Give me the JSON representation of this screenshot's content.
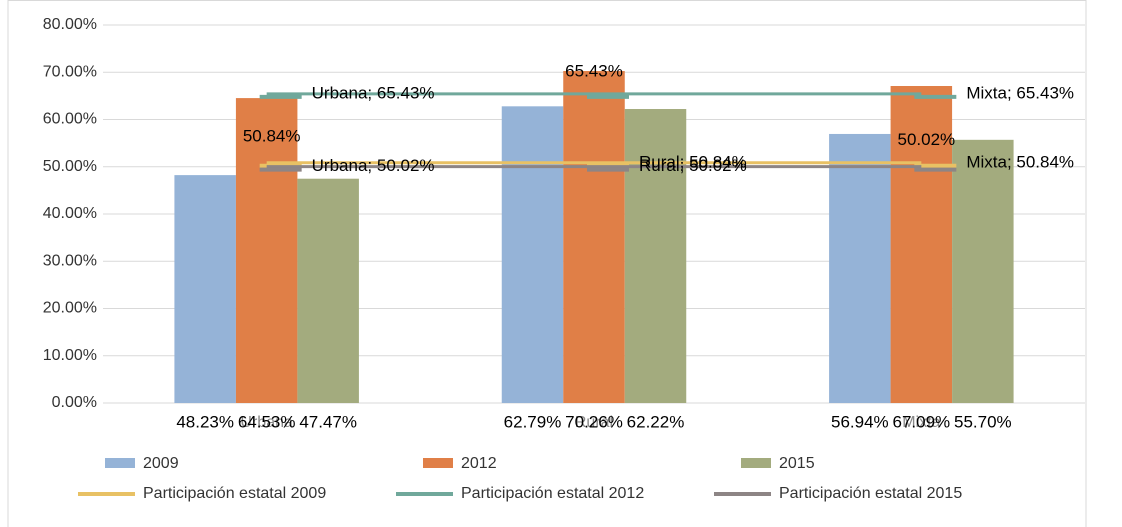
{
  "chart_data": {
    "type": "combo",
    "categories": [
      "Urbana",
      "Rural",
      "Mixta"
    ],
    "series": [
      {
        "name": "2009",
        "kind": "bar",
        "color": "#95b3d7",
        "values": [
          48.23,
          62.79,
          56.94
        ],
        "value_labels": [
          "48.23%",
          "62.79%",
          "56.94%"
        ]
      },
      {
        "name": "2012",
        "kind": "bar",
        "color": "#e07f47",
        "values": [
          64.53,
          70.26,
          67.09
        ],
        "value_labels": [
          "64.53%",
          "70.26%",
          "67.09%"
        ]
      },
      {
        "name": "2015",
        "kind": "bar",
        "color": "#a3ab7e",
        "values": [
          47.47,
          62.22,
          55.7
        ],
        "value_labels": [
          "47.47%",
          "62.22%",
          "55.70%"
        ]
      },
      {
        "name": "Participación estatal 2009",
        "kind": "line",
        "color": "#e8c164",
        "values": [
          50.84,
          50.84,
          50.84
        ],
        "value_labels": [
          "50.84%",
          "Rural; 50.84%",
          "Mixta; 50.84%"
        ]
      },
      {
        "name": "Participación estatal 2012",
        "kind": "line",
        "color": "#70a89b",
        "values": [
          65.43,
          65.43,
          65.43
        ],
        "value_labels": [
          "Urbana; 65.43%",
          "65.43%",
          "Mixta; 65.43%"
        ]
      },
      {
        "name": "Participación estatal 2015",
        "kind": "line",
        "color": "#8d8585",
        "values": [
          50.02,
          50.02,
          50.02
        ],
        "value_labels": [
          "Urbana; 50.02%",
          "Rural; 50.02%",
          "50.02%"
        ]
      }
    ],
    "ylim": [
      0,
      80
    ],
    "yticks": [
      {
        "value": 0,
        "label": "0.00%"
      },
      {
        "value": 10,
        "label": "10.00%"
      },
      {
        "value": 20,
        "label": "20.00%"
      },
      {
        "value": 30,
        "label": "30.00%"
      },
      {
        "value": 40,
        "label": "40.00%"
      },
      {
        "value": 50,
        "label": "50.00%"
      },
      {
        "value": 60,
        "label": "60.00%"
      },
      {
        "value": 70,
        "label": "70.00%"
      },
      {
        "value": 80,
        "label": "80.00%"
      }
    ],
    "grid": true
  }
}
